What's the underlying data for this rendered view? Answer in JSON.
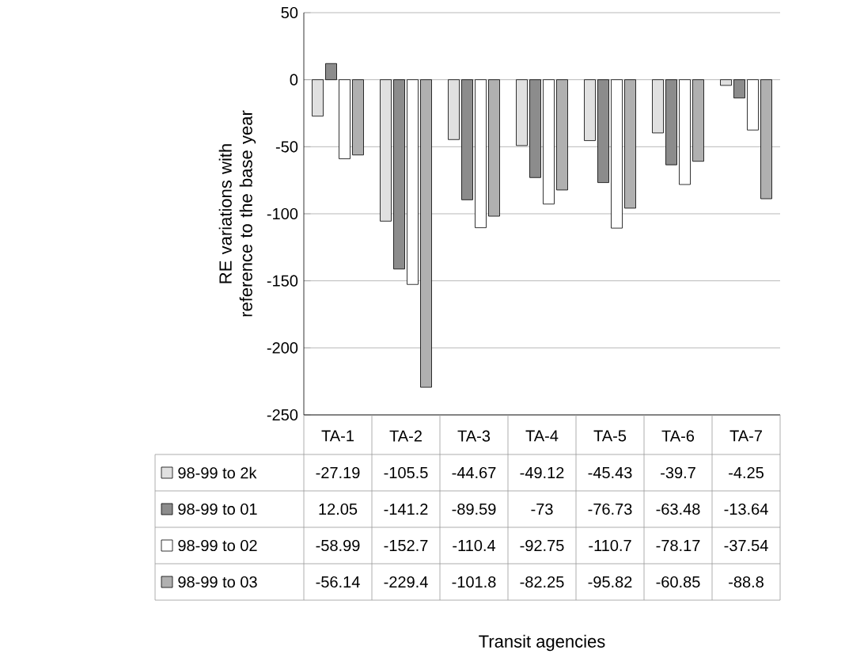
{
  "chart_data": {
    "type": "bar",
    "annotations": [
      "Transit agencies"
    ],
    "ylabel": "RE variations with reference to the base year",
    "categories": [
      "TA-1",
      "TA-2",
      "TA-3",
      "TA-4",
      "TA-5",
      "TA-6",
      "TA-7"
    ],
    "series": [
      {
        "name": "98-99 to 2k",
        "color": "#e0e0e0",
        "values": [
          -27.19,
          -105.5,
          -44.67,
          -49.12,
          -45.43,
          -39.7,
          -4.25
        ]
      },
      {
        "name": "98-99 to 01",
        "color": "#8c8c8c",
        "values": [
          12.05,
          -141.2,
          -89.59,
          -73,
          -76.73,
          -63.48,
          -13.64
        ]
      },
      {
        "name": "98-99 to 02",
        "color": "#ffffff",
        "values": [
          -58.99,
          -152.7,
          -110.4,
          -92.75,
          -110.7,
          -78.17,
          -37.54
        ]
      },
      {
        "name": "98-99 to 03",
        "color": "#b0b0b0",
        "values": [
          -56.14,
          -229.4,
          -101.8,
          -82.25,
          -95.82,
          -60.85,
          -88.8
        ]
      }
    ],
    "ylim": [
      -250,
      50
    ],
    "yticks": [
      -250,
      -200,
      -150,
      -100,
      -50,
      0,
      50
    ],
    "grid": "y",
    "legend": "bottom",
    "data_labels": true
  }
}
